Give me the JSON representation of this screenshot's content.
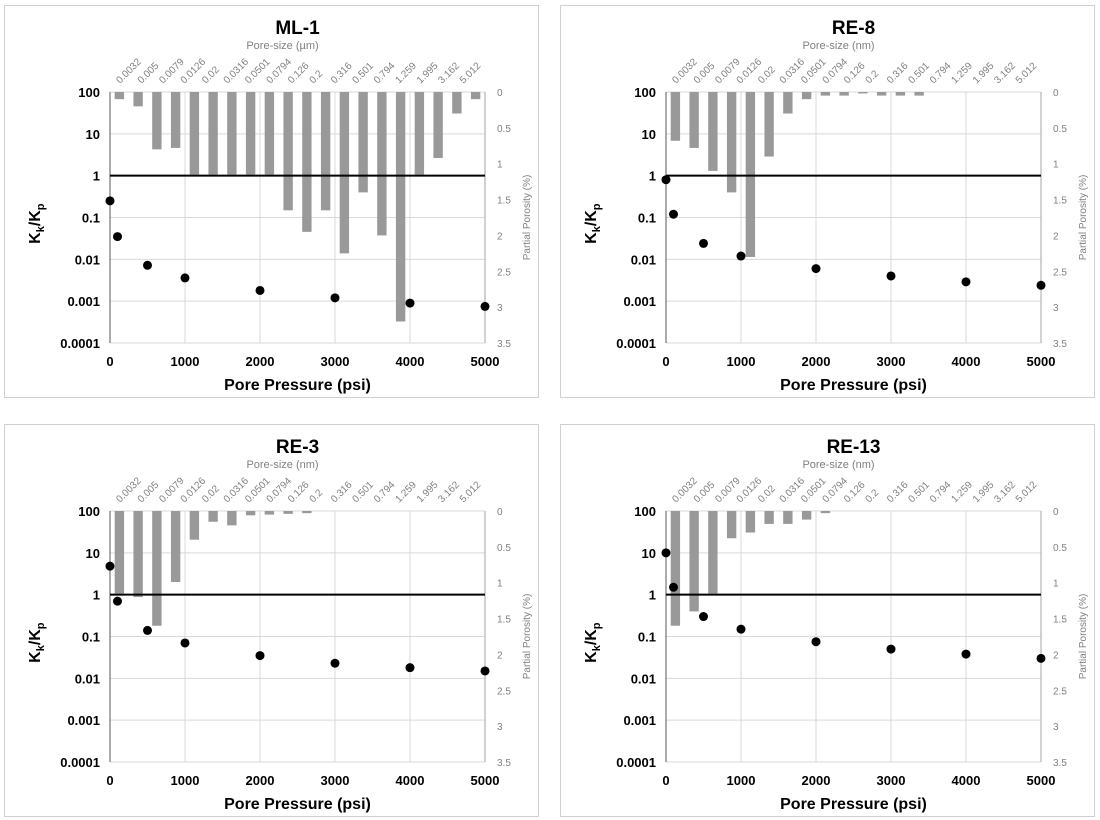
{
  "colors": {
    "bar": "#999999",
    "point": "#000000",
    "grid": "#d9d9d9",
    "rightaxis": "#a6a6a6"
  },
  "shared": {
    "left_ticks": [
      "100",
      "10",
      "1",
      "0.1",
      "0.01",
      "0.001",
      "0.0001"
    ],
    "right_ticks": [
      "0",
      "0.5",
      "1",
      "1.5",
      "2",
      "2.5",
      "3",
      "3.5"
    ],
    "x_ticks": [
      "0",
      "1000",
      "2000",
      "3000",
      "4000",
      "5000"
    ],
    "pore_sizes": [
      "0.0032",
      "0.005",
      "0.0079",
      "0.0126",
      "0.02",
      "0.0316",
      "0.0501",
      "0.0794",
      "0.126",
      "0.2",
      "0.316",
      "0.501",
      "0.794",
      "1.259",
      "1.995",
      "3.162",
      "5.012"
    ],
    "xlabel": "Pore Pressure (psi)",
    "ylabel_main": "K",
    "ylabel_sub1": "k",
    "ylabel_slash": "/K",
    "ylabel_sub2": "p",
    "rlabel": "Partial Porosity (%)"
  },
  "chart_data": [
    {
      "type": "bar+scatter",
      "title": "ML-1",
      "top_label": "Pore-size (µm)",
      "x": [
        0,
        100,
        500,
        1000,
        2000,
        3000,
        4000,
        5000
      ],
      "y": [
        0.25,
        0.035,
        0.0072,
        0.0036,
        0.0018,
        0.0012,
        0.0009,
        0.00075
      ],
      "bars": [
        0.1,
        0.2,
        0.8,
        0.78,
        1.15,
        1.15,
        1.15,
        1.15,
        1.15,
        1.65,
        1.95,
        1.65,
        2.25,
        1.4,
        2.0,
        3.2,
        1.15,
        0.92,
        0.3,
        0.1
      ],
      "xlim": [
        0,
        5000
      ],
      "ylim": [
        0.0001,
        100
      ],
      "y2lim": [
        0,
        3.5
      ]
    },
    {
      "type": "bar+scatter",
      "title": "RE-8",
      "top_label": "Pore-size (nm)",
      "x": [
        0,
        100,
        500,
        1000,
        2000,
        3000,
        4000,
        5000
      ],
      "y": [
        0.8,
        0.12,
        0.024,
        0.012,
        0.006,
        0.004,
        0.0029,
        0.0024
      ],
      "bars": [
        0.68,
        0.78,
        1.1,
        1.4,
        2.3,
        0.9,
        0.3,
        0.1,
        0.05,
        0.05,
        0.02,
        0.05,
        0.05,
        0.05
      ],
      "xlim": [
        0,
        5000
      ],
      "ylim": [
        0.0001,
        100
      ],
      "y2lim": [
        0,
        3.5
      ]
    },
    {
      "type": "bar+scatter",
      "title": "RE-3",
      "top_label": "Pore-size (nm)",
      "x": [
        0,
        100,
        500,
        1000,
        2000,
        3000,
        4000,
        5000
      ],
      "y": [
        4.8,
        0.7,
        0.14,
        0.07,
        0.035,
        0.023,
        0.018,
        0.015
      ],
      "bars": [
        1.15,
        1.2,
        1.6,
        0.99,
        0.4,
        0.15,
        0.2,
        0.06,
        0.05,
        0.04,
        0.03
      ],
      "xlim": [
        0,
        5000
      ],
      "ylim": [
        0.0001,
        100
      ],
      "y2lim": [
        0,
        3.5
      ]
    },
    {
      "type": "bar+scatter",
      "title": "RE-13",
      "top_label": "Pore-size (nm)",
      "x": [
        0,
        100,
        500,
        1000,
        2000,
        3000,
        4000,
        5000
      ],
      "y": [
        10,
        1.5,
        0.3,
        0.15,
        0.075,
        0.05,
        0.038,
        0.03
      ],
      "bars": [
        1.6,
        1.4,
        1.15,
        0.38,
        0.3,
        0.18,
        0.18,
        0.12,
        0.03
      ],
      "xlim": [
        0,
        5000
      ],
      "ylim": [
        0.0001,
        100
      ],
      "y2lim": [
        0,
        3.5
      ]
    }
  ]
}
